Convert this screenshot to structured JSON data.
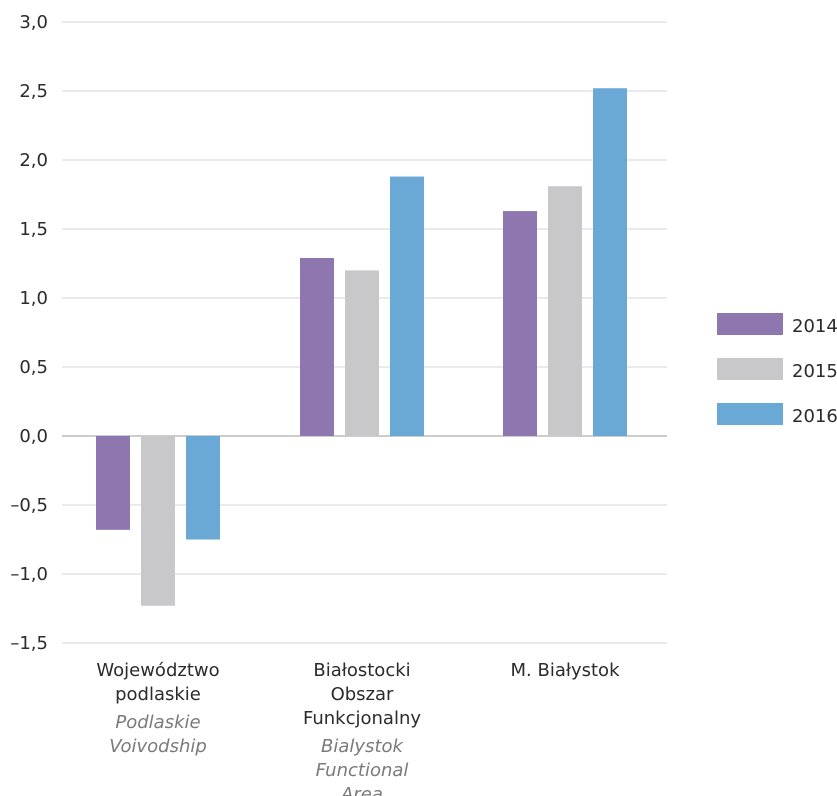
{
  "chart_data": {
    "type": "bar",
    "categories": [
      {
        "name": [
          "Województwo",
          "podlaskie"
        ],
        "name_en": [
          "Podlaskie",
          "Voivodship"
        ]
      },
      {
        "name": [
          "Białostocki",
          "Obszar",
          "Funkcjonalny"
        ],
        "name_en": [
          "Bialystok",
          "Functional",
          "Area"
        ]
      },
      {
        "name": [
          "M. Białystok"
        ],
        "name_en": []
      }
    ],
    "series": [
      {
        "name": "2014",
        "color": "#8e77ae",
        "values": [
          -0.68,
          1.29,
          1.63
        ]
      },
      {
        "name": "2015",
        "color": "#c8c8ca",
        "values": [
          -1.23,
          1.2,
          1.81
        ]
      },
      {
        "name": "2016",
        "color": "#6aa8d6",
        "values": [
          -0.75,
          1.88,
          2.52
        ]
      }
    ],
    "yticks": [
      "3,0",
      "2,5",
      "2,0",
      "1,5",
      "1,0",
      "0,5",
      "0,0",
      "–0,5",
      "–1,0",
      "–1,5"
    ],
    "ytick_values": [
      3.0,
      2.5,
      2.0,
      1.5,
      1.0,
      0.5,
      0.0,
      -0.5,
      -1.0,
      -1.5
    ],
    "ylim": [
      -1.5,
      3.0
    ],
    "grid": true,
    "legend_position": "right"
  }
}
